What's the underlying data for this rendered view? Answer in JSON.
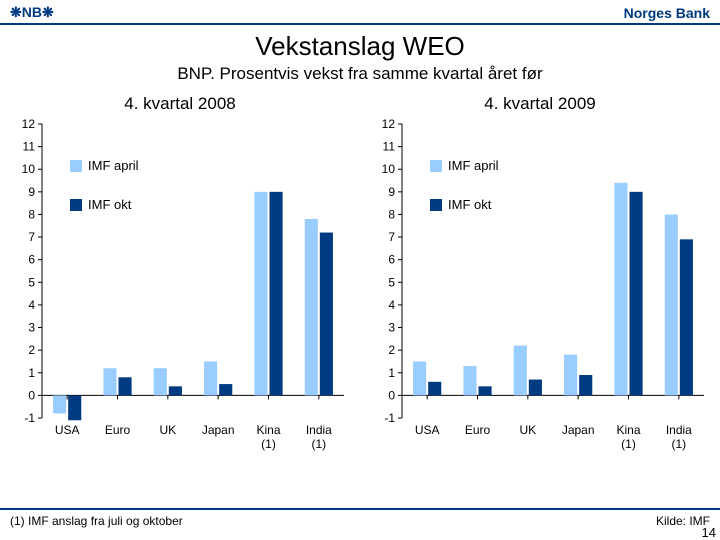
{
  "header": {
    "logo_text": "❋NB❋",
    "bank_name": "Norges Bank"
  },
  "title": "Vekstanslag WEO",
  "subtitle": "BNP. Prosentvis vekst fra samme kvartal året før",
  "colors": {
    "accent": "#003a80",
    "series_april": "#99ccff",
    "series_okt": "#003a80",
    "axis": "#000000",
    "background": "#ffffff"
  },
  "y_axis": {
    "min": -1,
    "max": 12,
    "step": 1
  },
  "categories": [
    "USA",
    "Euro",
    "UK",
    "Japan",
    "Kina (1)",
    "India (1)"
  ],
  "legend": [
    {
      "label": "IMF april",
      "color_key": "series_april"
    },
    {
      "label": "IMF okt",
      "color_key": "series_okt"
    }
  ],
  "charts": [
    {
      "title": "4. kvartal 2008",
      "series": [
        {
          "name": "IMF april",
          "color_key": "series_april",
          "values": [
            -0.8,
            1.2,
            1.2,
            1.5,
            9.0,
            7.8
          ]
        },
        {
          "name": "IMF okt",
          "color_key": "series_okt",
          "values": [
            -1.1,
            0.8,
            0.4,
            0.5,
            9.0,
            7.2
          ]
        }
      ]
    },
    {
      "title": "4. kvartal 2009",
      "series": [
        {
          "name": "IMF april",
          "color_key": "series_april",
          "values": [
            1.5,
            1.3,
            2.2,
            1.8,
            9.4,
            8.0
          ]
        },
        {
          "name": "IMF okt",
          "color_key": "series_okt",
          "values": [
            0.6,
            0.4,
            0.7,
            0.9,
            9.0,
            6.9
          ]
        }
      ]
    }
  ],
  "footnote": "(1) IMF anslag fra juli og oktober",
  "source": "Kilde: IMF",
  "page_number": "14"
}
